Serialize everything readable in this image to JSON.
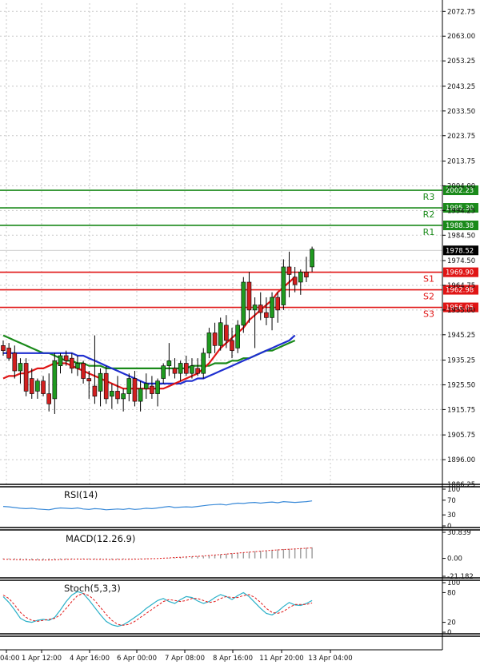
{
  "chart_data": {
    "type": "candlestick",
    "symbol": "",
    "colors": {
      "background": "#ffffff",
      "grid": "#c8c8c8",
      "bull": "#1f9a1f",
      "bear": "#d21f1f",
      "wick": "#000000",
      "resistance": "#1a8a1a",
      "support": "#e01515",
      "ma_fast": "#e01515",
      "ma_mid": "#1f2fd0",
      "ma_slow": "#1a8a1a",
      "rsi": "#3a8ad8",
      "macd": "#e01515",
      "stoch_main": "#2ab0c8",
      "stoch_signal": "#e01515"
    },
    "y_ticks": [
      "2072.75",
      "2063.00",
      "2053.25",
      "2043.25",
      "2033.50",
      "2023.75",
      "2013.75",
      "2004.00",
      "1994.25",
      "1984.50",
      "1974.50",
      "1964.75",
      "1955.00",
      "1945.25",
      "1935.25",
      "1925.50",
      "1915.75",
      "1905.75",
      "1896.00",
      "1886.25"
    ],
    "x_ticks": [
      "04:00",
      "1 Apr 12:00",
      "4 Apr 16:00",
      "6 Apr 00:00",
      "7 Apr 08:00",
      "8 Apr 16:00",
      "11 Apr 20:00",
      "13 Apr 04:00"
    ],
    "current_price": "1978.52",
    "levels": [
      {
        "name": "R3",
        "value": 2002.23,
        "label": "2002.23",
        "kind": "resistance"
      },
      {
        "name": "R2",
        "value": 1995.3,
        "label": "1995.30",
        "kind": "resistance"
      },
      {
        "name": "R1",
        "value": 1988.38,
        "label": "1988.38",
        "kind": "resistance"
      },
      {
        "name": "S1",
        "value": 1969.9,
        "label": "1969.90",
        "kind": "support"
      },
      {
        "name": "S2",
        "value": 1962.98,
        "label": "1962.98",
        "kind": "support"
      },
      {
        "name": "S3",
        "value": 1956.05,
        "label": "1956.05",
        "kind": "support"
      }
    ],
    "candles": [
      [
        1941,
        1943,
        1937,
        1939
      ],
      [
        1940,
        1942,
        1935,
        1936
      ],
      [
        1938,
        1941,
        1928,
        1931
      ],
      [
        1931,
        1936,
        1926,
        1934
      ],
      [
        1934,
        1936,
        1921,
        1923
      ],
      [
        1928,
        1932,
        1920,
        1922
      ],
      [
        1923,
        1928,
        1920,
        1927
      ],
      [
        1927,
        1929,
        1921,
        1922
      ],
      [
        1922,
        1930,
        1915,
        1918
      ],
      [
        1920,
        1938,
        1914,
        1935
      ],
      [
        1933,
        1938,
        1930,
        1937
      ],
      [
        1937,
        1939,
        1933,
        1935
      ],
      [
        1936,
        1938,
        1930,
        1932
      ],
      [
        1932,
        1937,
        1929,
        1934
      ],
      [
        1934,
        1935,
        1926,
        1928
      ],
      [
        1928,
        1931,
        1920,
        1927
      ],
      [
        1925,
        1945,
        1918,
        1921
      ],
      [
        1923,
        1932,
        1917,
        1930
      ],
      [
        1930,
        1933,
        1918,
        1920
      ],
      [
        1921,
        1926,
        1916,
        1923
      ],
      [
        1923,
        1929,
        1918,
        1920
      ],
      [
        1920,
        1924,
        1915,
        1922
      ],
      [
        1922,
        1930,
        1919,
        1928
      ],
      [
        1928,
        1931,
        1917,
        1919
      ],
      [
        1919,
        1927,
        1915,
        1924
      ],
      [
        1924,
        1930,
        1920,
        1926
      ],
      [
        1925,
        1929,
        1920,
        1922
      ],
      [
        1922,
        1928,
        1917,
        1927
      ],
      [
        1928,
        1934,
        1926,
        1933
      ],
      [
        1933,
        1942,
        1929,
        1935
      ],
      [
        1932,
        1936,
        1928,
        1930
      ],
      [
        1930,
        1935,
        1927,
        1934
      ],
      [
        1934,
        1937,
        1929,
        1930
      ],
      [
        1930,
        1936,
        1928,
        1933
      ],
      [
        1932,
        1936,
        1929,
        1930
      ],
      [
        1930,
        1940,
        1928,
        1938
      ],
      [
        1938,
        1948,
        1936,
        1946
      ],
      [
        1946,
        1950,
        1938,
        1941
      ],
      [
        1941,
        1952,
        1939,
        1950
      ],
      [
        1949,
        1953,
        1940,
        1943
      ],
      [
        1943,
        1948,
        1936,
        1939
      ],
      [
        1940,
        1951,
        1938,
        1949
      ],
      [
        1949,
        1968,
        1946,
        1966
      ],
      [
        1966,
        1970,
        1950,
        1955
      ],
      [
        1955,
        1960,
        1940,
        1957
      ],
      [
        1957,
        1962,
        1951,
        1954
      ],
      [
        1954,
        1960,
        1949,
        1952
      ],
      [
        1952,
        1962,
        1947,
        1960
      ],
      [
        1960,
        1962,
        1950,
        1955
      ],
      [
        1957,
        1975,
        1955,
        1972
      ],
      [
        1972,
        1978,
        1960,
        1969
      ],
      [
        1968,
        1972,
        1962,
        1965
      ],
      [
        1966,
        1971,
        1961,
        1970
      ],
      [
        1970,
        1976,
        1966,
        1968
      ],
      [
        1972,
        1980,
        1970,
        1979
      ]
    ],
    "ma_fast": [
      1928,
      1929,
      1929,
      1930,
      1930,
      1931,
      1932,
      1932,
      1933,
      1934,
      1934,
      1934,
      1933,
      1932,
      1931,
      1930,
      1929,
      1928,
      1927,
      1926,
      1925,
      1924,
      1924,
      1924,
      1924,
      1924,
      1924,
      1924,
      1924,
      1925,
      1926,
      1927,
      1928,
      1929,
      1930,
      1932,
      1934,
      1937,
      1940,
      1942,
      1944,
      1946,
      1948,
      1951,
      1953,
      1955,
      1957,
      1959,
      1962,
      1964,
      1966,
      1968
    ],
    "ma_mid": [
      1938,
      1938,
      1938,
      1938,
      1938,
      1938,
      1938,
      1938,
      1938,
      1938,
      1938,
      1938,
      1938,
      1937,
      1937,
      1936,
      1935,
      1934,
      1933,
      1932,
      1931,
      1930,
      1929,
      1928,
      1927,
      1926,
      1926,
      1926,
      1926,
      1926,
      1926,
      1926,
      1927,
      1927,
      1928,
      1928,
      1929,
      1930,
      1931,
      1932,
      1933,
      1934,
      1935,
      1936,
      1937,
      1938,
      1939,
      1940,
      1941,
      1942,
      1943,
      1945
    ],
    "ma_slow": [
      1945,
      1944,
      1943,
      1942,
      1941,
      1940,
      1939,
      1938,
      1938,
      1937,
      1936,
      1935,
      1935,
      1934,
      1934,
      1933,
      1933,
      1933,
      1932,
      1932,
      1932,
      1932,
      1932,
      1932,
      1932,
      1932,
      1932,
      1932,
      1932,
      1932,
      1932,
      1932,
      1932,
      1933,
      1933,
      1933,
      1933,
      1934,
      1934,
      1934,
      1935,
      1935,
      1936,
      1936,
      1937,
      1938,
      1939,
      1939,
      1940,
      1941,
      1942,
      1943
    ],
    "rsi": {
      "title": "RSI(14)",
      "ticks": [
        "100",
        "70",
        "30",
        "0"
      ],
      "values": [
        53,
        52,
        50,
        48,
        47,
        48,
        46,
        45,
        44,
        47,
        49,
        48,
        47,
        49,
        46,
        45,
        47,
        46,
        44,
        45,
        46,
        45,
        47,
        45,
        46,
        48,
        47,
        49,
        51,
        53,
        50,
        51,
        52,
        51,
        53,
        55,
        57,
        58,
        59,
        57,
        60,
        62,
        61,
        63,
        64,
        62,
        64,
        65,
        63,
        66,
        65,
        64,
        65,
        66,
        68
      ]
    },
    "macd": {
      "title": "MACD(12.26.9)",
      "ticks": [
        "30.839",
        "0.00",
        "-21.182"
      ],
      "bars": [
        -1,
        -1.2,
        -1.5,
        -1.6,
        -1.8,
        -1.9,
        -2,
        -2.1,
        -2,
        -1.8,
        -1.5,
        -1.2,
        -1,
        -0.9,
        -0.9,
        -1,
        -1.1,
        -1.2,
        -1.3,
        -1.4,
        -1.3,
        -1.2,
        -1.1,
        -1,
        -0.8,
        -0.6,
        -0.4,
        -0.2,
        0.2,
        0.6,
        1,
        1.4,
        1.8,
        2.2,
        2.6,
        3,
        3.6,
        4.2,
        4.8,
        5.4,
        6,
        6.6,
        7.2,
        7.8,
        8.4,
        9,
        9.6,
        10.2,
        10.6,
        11,
        11.4,
        11.8,
        12.2,
        12.6,
        13
      ]
    },
    "stoch": {
      "title": "Stoch(5,3,3)",
      "ticks": [
        "100",
        "80",
        "20",
        "0"
      ],
      "main": [
        72,
        60,
        45,
        28,
        22,
        20,
        24,
        26,
        24,
        30,
        45,
        62,
        75,
        82,
        78,
        65,
        50,
        35,
        22,
        15,
        12,
        15,
        22,
        30,
        38,
        48,
        56,
        64,
        68,
        62,
        58,
        66,
        72,
        70,
        63,
        58,
        62,
        70,
        76,
        72,
        66,
        74,
        80,
        72,
        60,
        48,
        38,
        35,
        42,
        52,
        60,
        55,
        54,
        58,
        64
      ],
      "signal": [
        75,
        68,
        55,
        40,
        30,
        24,
        22,
        24,
        26,
        28,
        35,
        48,
        62,
        74,
        78,
        74,
        64,
        50,
        36,
        24,
        16,
        14,
        16,
        22,
        30,
        38,
        46,
        54,
        62,
        66,
        64,
        62,
        64,
        68,
        68,
        64,
        60,
        62,
        68,
        72,
        70,
        70,
        74,
        76,
        70,
        60,
        48,
        40,
        38,
        42,
        50,
        56,
        56,
        56,
        59
      ]
    }
  }
}
